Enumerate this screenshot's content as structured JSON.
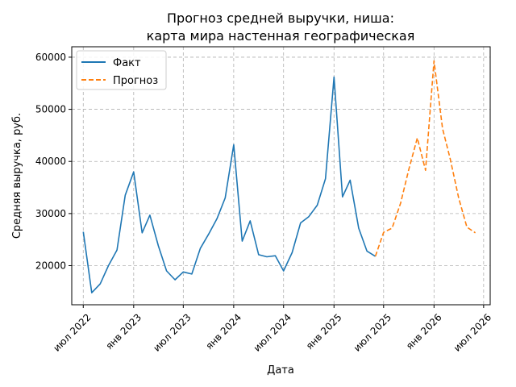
{
  "chart_data": {
    "type": "line",
    "title_line1": "Прогноз средней выручки, ниша:",
    "title_line2": "карта мира настенная географическая",
    "xlabel": "Дата",
    "ylabel": "Средняя выручка, руб.",
    "grid": true,
    "legend_position": "top-left",
    "xlim": [
      "2022-05-20",
      "2026-07-25"
    ],
    "ylim": [
      12500,
      62000
    ],
    "x_ticks": [
      {
        "date": "2022-07-01",
        "label": "июл 2022"
      },
      {
        "date": "2023-01-01",
        "label": "янв 2023"
      },
      {
        "date": "2023-07-01",
        "label": "июл 2023"
      },
      {
        "date": "2024-01-01",
        "label": "янв 2024"
      },
      {
        "date": "2024-07-01",
        "label": "июл 2024"
      },
      {
        "date": "2025-01-01",
        "label": "янв 2025"
      },
      {
        "date": "2025-07-01",
        "label": "июл 2025"
      },
      {
        "date": "2026-01-01",
        "label": "янв 2026"
      },
      {
        "date": "2026-07-01",
        "label": "июл 2026"
      }
    ],
    "y_ticks": [
      {
        "value": 20000,
        "label": "20000"
      },
      {
        "value": 30000,
        "label": "30000"
      },
      {
        "value": 40000,
        "label": "40000"
      },
      {
        "value": 50000,
        "label": "50000"
      },
      {
        "value": 60000,
        "label": "60000"
      }
    ],
    "series": [
      {
        "name": "Факт",
        "color": "#1f77b4",
        "style": "solid",
        "points": [
          [
            "2022-07-01",
            26500
          ],
          [
            "2022-08-01",
            14800
          ],
          [
            "2022-09-01",
            16500
          ],
          [
            "2022-10-01",
            20000
          ],
          [
            "2022-11-01",
            23000
          ],
          [
            "2022-12-01",
            33500
          ],
          [
            "2023-01-01",
            38000
          ],
          [
            "2023-02-01",
            26300
          ],
          [
            "2023-03-01",
            29700
          ],
          [
            "2023-04-01",
            23800
          ],
          [
            "2023-05-01",
            19000
          ],
          [
            "2023-06-01",
            17300
          ],
          [
            "2023-07-01",
            18800
          ],
          [
            "2023-08-01",
            18400
          ],
          [
            "2023-09-01",
            23300
          ],
          [
            "2023-10-01",
            26000
          ],
          [
            "2023-11-01",
            29000
          ],
          [
            "2023-12-01",
            33000
          ],
          [
            "2024-01-01",
            43200
          ],
          [
            "2024-02-01",
            24700
          ],
          [
            "2024-03-01",
            28600
          ],
          [
            "2024-04-01",
            22100
          ],
          [
            "2024-05-01",
            21700
          ],
          [
            "2024-06-01",
            21900
          ],
          [
            "2024-07-01",
            19000
          ],
          [
            "2024-08-01",
            22500
          ],
          [
            "2024-09-01",
            28200
          ],
          [
            "2024-10-01",
            29400
          ],
          [
            "2024-11-01",
            31600
          ],
          [
            "2024-12-01",
            36700
          ],
          [
            "2025-01-01",
            56200
          ],
          [
            "2025-02-01",
            33200
          ],
          [
            "2025-03-01",
            36400
          ],
          [
            "2025-04-01",
            27200
          ],
          [
            "2025-05-01",
            22800
          ],
          [
            "2025-06-01",
            21800
          ]
        ]
      },
      {
        "name": "Прогноз",
        "color": "#ff7f0e",
        "style": "dashed",
        "points": [
          [
            "2025-06-01",
            21800
          ],
          [
            "2025-07-01",
            26400
          ],
          [
            "2025-08-01",
            27200
          ],
          [
            "2025-09-01",
            32000
          ],
          [
            "2025-10-01",
            38500
          ],
          [
            "2025-11-01",
            44500
          ],
          [
            "2025-12-01",
            38300
          ],
          [
            "2026-01-01",
            59300
          ],
          [
            "2026-02-01",
            46300
          ],
          [
            "2026-03-01",
            40500
          ],
          [
            "2026-04-01",
            33000
          ],
          [
            "2026-05-01",
            27400
          ],
          [
            "2026-06-01",
            26300
          ]
        ]
      }
    ]
  }
}
